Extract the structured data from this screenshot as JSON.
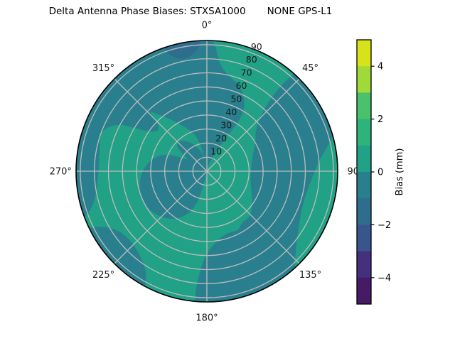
{
  "title": "Delta Antenna Phase Biases: STXSA1000       NONE GPS-L1",
  "chart_data": {
    "type": "heatmap",
    "subtype": "polar_contour",
    "station": "STXSA1000",
    "receiver": "NONE",
    "signal": "GPS-L1",
    "grid": "on",
    "rmax": 93,
    "angle_ticks": [
      {
        "deg": 0,
        "label": "0°"
      },
      {
        "deg": 45,
        "label": "45°"
      },
      {
        "deg": 90,
        "label": "90"
      },
      {
        "deg": 135,
        "label": "135°"
      },
      {
        "deg": 180,
        "label": "180°"
      },
      {
        "deg": 225,
        "label": "225°"
      },
      {
        "deg": 270,
        "label": "270°"
      },
      {
        "deg": 315,
        "label": "315°"
      }
    ],
    "radial_ticks": [
      {
        "value": 10,
        "label": "10"
      },
      {
        "value": 20,
        "label": "20"
      },
      {
        "value": 30,
        "label": "30"
      },
      {
        "value": 40,
        "label": "40"
      },
      {
        "value": 50,
        "label": "50"
      },
      {
        "value": 60,
        "label": "60"
      },
      {
        "value": 70,
        "label": "70"
      },
      {
        "value": 80,
        "label": "80"
      },
      {
        "value": 90,
        "label": "90"
      }
    ],
    "radial_label_angle_deg": 21,
    "colorbar": {
      "label": "Bias (mm)",
      "range": [
        -5,
        5
      ],
      "ticks": [
        {
          "value": 4,
          "label": "4"
        },
        {
          "value": 2,
          "label": "2"
        },
        {
          "value": 0,
          "label": "0"
        },
        {
          "value": -2,
          "label": "−2"
        },
        {
          "value": -4,
          "label": "−4"
        }
      ],
      "segment_colors_top_to_bottom": [
        "#d7e219",
        "#a0da39",
        "#4ac16d",
        "#2eb37c",
        "#21a185",
        "#2a7f8e",
        "#2e6d8e",
        "#39568c",
        "#45307d",
        "#461a64"
      ]
    },
    "background_bias_bin": {
      "range_mm": "0 to 1",
      "color": "#21a185"
    },
    "regions": [
      {
        "name": "bias_-1_to_0_north_blob",
        "bin_mm": "-1 to 0",
        "color": "#2a7f8e",
        "points": [
          [
            -52,
            97
          ],
          [
            -35,
            97
          ],
          [
            -15,
            97
          ],
          [
            3,
            97
          ],
          [
            6,
            78
          ],
          [
            12,
            70
          ],
          [
            20,
            66
          ],
          [
            28,
            58
          ],
          [
            33,
            47
          ],
          [
            30,
            28
          ],
          [
            20,
            10
          ],
          [
            6,
            2
          ],
          [
            -8,
            8
          ],
          [
            -15,
            26
          ],
          [
            -26,
            35
          ],
          [
            -36,
            47
          ],
          [
            -46,
            64
          ],
          [
            -52,
            80
          ]
        ]
      },
      {
        "name": "bias_-1_to_0_east_south_blob",
        "bin_mm": "-1 to 0",
        "color": "#2a7f8e",
        "points": [
          [
            42,
            97
          ],
          [
            52,
            97
          ],
          [
            62,
            97
          ],
          [
            72,
            97
          ],
          [
            78,
            88
          ],
          [
            86,
            79
          ],
          [
            96,
            74
          ],
          [
            108,
            72
          ],
          [
            119,
            75
          ],
          [
            129,
            82
          ],
          [
            136,
            90
          ],
          [
            140,
            97
          ],
          [
            152,
            97
          ],
          [
            166,
            97
          ],
          [
            180,
            97
          ],
          [
            186,
            97
          ],
          [
            184,
            70
          ],
          [
            180,
            58
          ],
          [
            172,
            50
          ],
          [
            161,
            46
          ],
          [
            152,
            48
          ],
          [
            146,
            44
          ],
          [
            137,
            45
          ],
          [
            126,
            40
          ],
          [
            112,
            34
          ],
          [
            97,
            31
          ],
          [
            82,
            32
          ],
          [
            69,
            35
          ],
          [
            60,
            40
          ],
          [
            50,
            45
          ],
          [
            44,
            55
          ],
          [
            41,
            70
          ],
          [
            41,
            85
          ]
        ]
      },
      {
        "name": "bias_-1_to_0_center_west_blob",
        "bin_mm": "-1 to 0",
        "color": "#2a7f8e",
        "points": [
          [
            183,
            2
          ],
          [
            196,
            26
          ],
          [
            208,
            38
          ],
          [
            222,
            46
          ],
          [
            240,
            51
          ],
          [
            258,
            50
          ],
          [
            274,
            45
          ],
          [
            288,
            37
          ],
          [
            296,
            27
          ],
          [
            301,
            14
          ],
          [
            305,
            22
          ],
          [
            312,
            30
          ],
          [
            322,
            28
          ],
          [
            334,
            22
          ],
          [
            346,
            14
          ],
          [
            356,
            6
          ],
          [
            358,
            2
          ]
        ]
      },
      {
        "name": "bias_-1_to_0_west_edge_band",
        "bin_mm": "-1 to 0",
        "color": "#2a7f8e",
        "points": [
          [
            248,
            97
          ],
          [
            252,
            86
          ],
          [
            259,
            80
          ],
          [
            270,
            77
          ],
          [
            282,
            78
          ],
          [
            291,
            81
          ],
          [
            298,
            72
          ],
          [
            301,
            60
          ],
          [
            305,
            48
          ],
          [
            312,
            44
          ],
          [
            316,
            56
          ],
          [
            317,
            70
          ],
          [
            317,
            85
          ],
          [
            314,
            97
          ],
          [
            300,
            97
          ],
          [
            285,
            97
          ],
          [
            268,
            97
          ]
        ]
      },
      {
        "name": "bias_-1_to_0_southwest_wedge",
        "bin_mm": "-1 to 0",
        "color": "#2a7f8e",
        "points": [
          [
            207,
            97
          ],
          [
            211,
            83
          ],
          [
            219,
            76
          ],
          [
            229,
            73
          ],
          [
            238,
            77
          ],
          [
            243,
            86
          ],
          [
            245,
            97
          ],
          [
            232,
            97
          ],
          [
            219,
            97
          ]
        ]
      },
      {
        "name": "bias_-2_to_-1_topleft_patch",
        "bin_mm": "-2 to -1",
        "color": "#2e6d8e",
        "points": [
          [
            -20,
            97
          ],
          [
            -18,
            86
          ],
          [
            -12,
            81
          ],
          [
            -6,
            84
          ],
          [
            -3,
            90
          ],
          [
            -2,
            97
          ],
          [
            -10,
            97
          ]
        ]
      }
    ],
    "styles": {
      "grid_color": "#bdbdbd",
      "outer_border_color": "#000000",
      "text_color": "#1a1a1a"
    }
  }
}
